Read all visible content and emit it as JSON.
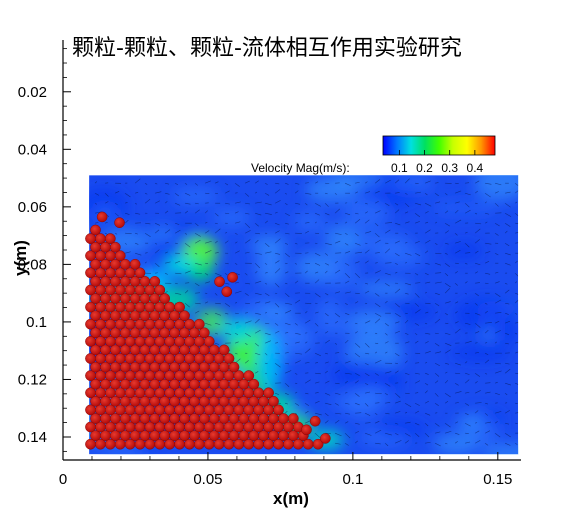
{
  "chart_data": {
    "type": "heatmap",
    "title": "颗粒-颗粒、颗粒-流体相互作用实验研究",
    "xlabel": "x(m)",
    "ylabel": "y(m)",
    "xlim": [
      0,
      0.158
    ],
    "ylim": [
      0.148,
      0.002
    ],
    "x_ticks": [
      {
        "value": 0,
        "label": "0"
      },
      {
        "value": 0.05,
        "label": "0.05"
      },
      {
        "value": 0.1,
        "label": "0.1"
      },
      {
        "value": 0.15,
        "label": "0.15"
      }
    ],
    "y_ticks": [
      {
        "value": 0.02,
        "label": "0.02"
      },
      {
        "value": 0.04,
        "label": "0.04"
      },
      {
        "value": 0.06,
        "label": "0.06"
      },
      {
        "value": 0.08,
        "label": "0.08"
      },
      {
        "value": 0.1,
        "label": "0.1"
      },
      {
        "value": 0.12,
        "label": "0.12"
      },
      {
        "value": 0.14,
        "label": "0.14"
      }
    ],
    "field_extent": {
      "x": [
        0.009,
        0.157
      ],
      "y": [
        0.049,
        0.146
      ]
    },
    "colorbar": {
      "label": "Velocity Mag(m/s):",
      "range": [
        0.035,
        0.48
      ],
      "ticks": [
        {
          "value": 0.1,
          "label": "0.1"
        },
        {
          "value": 0.2,
          "label": "0.2"
        },
        {
          "value": 0.3,
          "label": "0.3"
        },
        {
          "value": 0.4,
          "label": "0.4"
        }
      ],
      "colors": [
        "#0000ff",
        "#0078ff",
        "#00e0e0",
        "#00e060",
        "#40ff00",
        "#c8ff00",
        "#ffff00",
        "#ff9900",
        "#ff0000"
      ]
    },
    "particles": {
      "color": "#cc0a0a",
      "count_approx": 260,
      "diameter_m": 0.0035
    }
  }
}
